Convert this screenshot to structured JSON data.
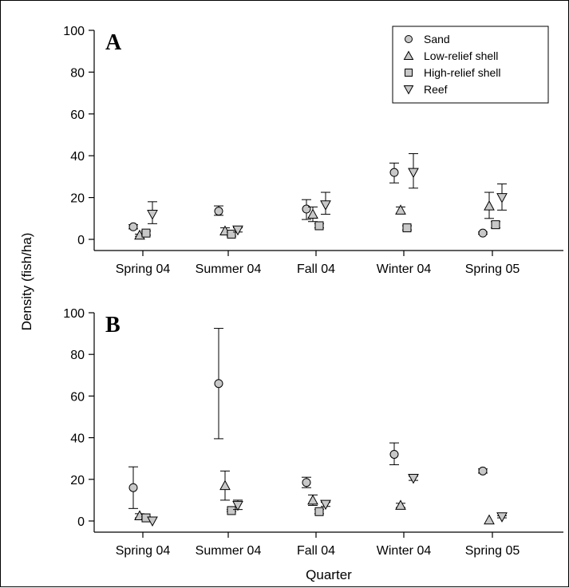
{
  "chart_data": {
    "type": "scatter",
    "ylabel": "Density (fish/ha)",
    "xlabel": "Quarter",
    "categories": [
      "Spring 04",
      "Summer 04",
      "Fall 04",
      "Winter 04",
      "Spring 05"
    ],
    "ylim": [
      0,
      100
    ],
    "yticks": [
      "0",
      "20",
      "40",
      "60",
      "80",
      "100"
    ],
    "grid": false,
    "legend_position": "top-right",
    "series_styles": [
      {
        "name": "Sand",
        "marker": "circle",
        "color": "#c8c8c8"
      },
      {
        "name": "Low-relief shell",
        "marker": "triangle-up",
        "color": "#c8c8c8"
      },
      {
        "name": "High-relief shell",
        "marker": "square",
        "color": "#c8c8c8"
      },
      {
        "name": "Reef",
        "marker": "triangle-down",
        "color": "#c8c8c8"
      }
    ],
    "panels": [
      {
        "label": "A",
        "series": [
          {
            "name": "Sand",
            "values": [
              6,
              13.5,
              14.5,
              32,
              3
            ],
            "err_low": [
              5,
              11.5,
              9.5,
              27,
              2.5
            ],
            "err_high": [
              7,
              16,
              19,
              36.5,
              3.5
            ]
          },
          {
            "name": "Low-relief shell",
            "values": [
              2,
              4,
              12,
              14,
              16
            ],
            "err_low": [
              1.5,
              2.5,
              8.5,
              12.5,
              10
            ],
            "err_high": [
              2.5,
              5.5,
              15.5,
              15.5,
              22.5
            ]
          },
          {
            "name": "High-relief shell",
            "values": [
              3,
              2.5,
              6.5,
              5.5,
              7
            ],
            "err_low": [
              2,
              1.5,
              5.5,
              4.5,
              5.5
            ],
            "err_high": [
              4,
              3.5,
              7.5,
              6.5,
              8.5
            ]
          },
          {
            "name": "Reef",
            "values": [
              12,
              4.5,
              16.5,
              32,
              20
            ],
            "err_low": [
              7.5,
              3.5,
              12,
              24.5,
              14
            ],
            "err_high": [
              18,
              5.5,
              22.5,
              41,
              26.5
            ]
          }
        ]
      },
      {
        "label": "B",
        "series": [
          {
            "name": "Sand",
            "values": [
              16,
              66,
              18.5,
              32,
              24
            ],
            "err_low": [
              6,
              39.5,
              16,
              27,
              23
            ],
            "err_high": [
              26,
              92.5,
              21,
              37.5,
              25
            ]
          },
          {
            "name": "Low-relief shell",
            "values": [
              2.5,
              17,
              10,
              7.5,
              0.5
            ],
            "err_low": [
              1.5,
              10,
              7.5,
              6.5,
              0.2
            ],
            "err_high": [
              3.5,
              24,
              12.5,
              8.5,
              0.8
            ]
          },
          {
            "name": "High-relief shell",
            "values": [
              1.5,
              5,
              4.5,
              null,
              null
            ],
            "err_low": [
              1,
              4.5,
              3.5,
              null,
              null
            ],
            "err_high": [
              2,
              5.5,
              5.5,
              null,
              null
            ]
          },
          {
            "name": "Reef",
            "values": [
              0,
              7.5,
              8,
              20.5,
              2
            ],
            "err_low": [
              0,
              5.5,
              7,
              19.5,
              1.5
            ],
            "err_high": [
              0,
              10,
              9,
              21.5,
              2.5
            ]
          }
        ]
      }
    ]
  }
}
